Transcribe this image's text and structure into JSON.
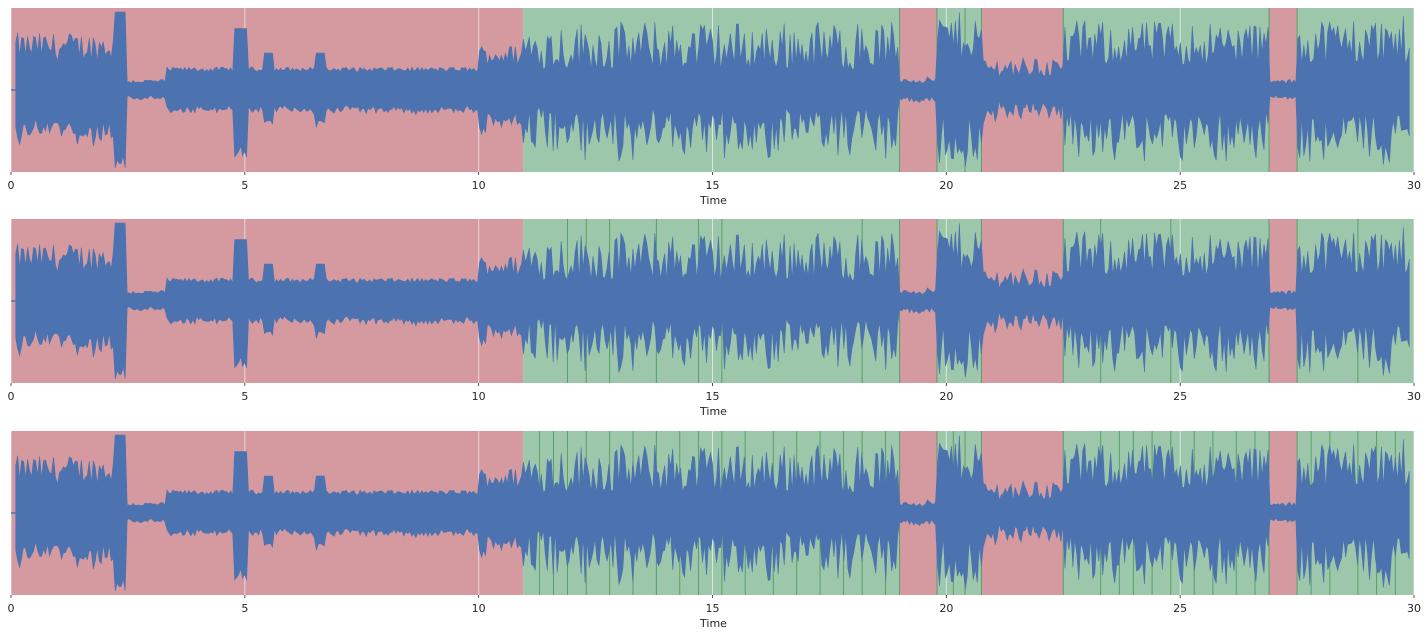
{
  "chart_data": [
    {
      "type": "area",
      "subtype": "waveform-with-segments",
      "title": "",
      "xlabel": "Time",
      "ylabel": "",
      "xlim": [
        0,
        30
      ],
      "xticks": [
        0,
        5,
        10,
        15,
        20,
        25,
        30
      ],
      "grid": true,
      "segments": [
        {
          "start": 0,
          "end": 10.95,
          "class": "red"
        },
        {
          "start": 10.95,
          "end": 19.0,
          "class": "green"
        },
        {
          "start": 19.0,
          "end": 19.8,
          "class": "red"
        },
        {
          "start": 19.8,
          "end": 20.75,
          "class": "green"
        },
        {
          "start": 20.75,
          "end": 22.5,
          "class": "red"
        },
        {
          "start": 22.5,
          "end": 26.9,
          "class": "green"
        },
        {
          "start": 26.9,
          "end": 27.5,
          "class": "red"
        },
        {
          "start": 27.5,
          "end": 30,
          "class": "green"
        }
      ],
      "boundaries": [
        19.0,
        19.8,
        20.75,
        22.5,
        26.9,
        27.5,
        20.4
      ]
    },
    {
      "type": "area",
      "subtype": "waveform-with-segments",
      "title": "",
      "xlabel": "Time",
      "ylabel": "",
      "xlim": [
        0,
        30
      ],
      "xticks": [
        0,
        5,
        10,
        15,
        20,
        25,
        30
      ],
      "grid": true,
      "segments": [
        {
          "start": 0,
          "end": 10.95,
          "class": "red"
        },
        {
          "start": 10.95,
          "end": 19.0,
          "class": "green"
        },
        {
          "start": 19.0,
          "end": 19.8,
          "class": "red"
        },
        {
          "start": 19.8,
          "end": 20.75,
          "class": "green"
        },
        {
          "start": 20.75,
          "end": 22.5,
          "class": "red"
        },
        {
          "start": 22.5,
          "end": 26.9,
          "class": "green"
        },
        {
          "start": 26.9,
          "end": 27.5,
          "class": "red"
        },
        {
          "start": 27.5,
          "end": 30,
          "class": "green"
        }
      ],
      "boundaries": [
        11.9,
        12.3,
        12.8,
        13.8,
        14.7,
        15.2,
        18.2,
        19.0,
        19.8,
        20.75,
        22.5,
        23.3,
        24.8,
        26.9,
        27.5,
        28.8
      ]
    },
    {
      "type": "area",
      "subtype": "waveform-with-segments",
      "title": "",
      "xlabel": "Time",
      "ylabel": "",
      "xlim": [
        0,
        30
      ],
      "xticks": [
        0,
        5,
        10,
        15,
        20,
        25,
        30
      ],
      "grid": true,
      "segments": [
        {
          "start": 0,
          "end": 10.95,
          "class": "red"
        },
        {
          "start": 10.95,
          "end": 19.0,
          "class": "green"
        },
        {
          "start": 19.0,
          "end": 19.8,
          "class": "red"
        },
        {
          "start": 19.8,
          "end": 20.75,
          "class": "green"
        },
        {
          "start": 20.75,
          "end": 22.5,
          "class": "red"
        },
        {
          "start": 22.5,
          "end": 26.9,
          "class": "green"
        },
        {
          "start": 26.9,
          "end": 27.5,
          "class": "red"
        },
        {
          "start": 27.5,
          "end": 30,
          "class": "green"
        }
      ],
      "boundaries": [
        11.3,
        11.6,
        11.9,
        12.3,
        12.8,
        13.3,
        13.8,
        14.3,
        14.7,
        15.2,
        15.7,
        16.3,
        16.8,
        17.3,
        17.8,
        18.2,
        18.7,
        19.0,
        19.8,
        20.15,
        20.4,
        20.75,
        22.5,
        23.3,
        23.7,
        24.0,
        24.4,
        24.8,
        25.3,
        25.7,
        26.2,
        26.6,
        26.9,
        27.5,
        27.8,
        28.2,
        28.8,
        29.2,
        29.6
      ]
    }
  ],
  "colors": {
    "red_segment": "#d59aa0",
    "green_segment": "#9dc7ab",
    "waveform": "#4c72b0",
    "boundary_line": "#5a9e6a",
    "grid": "#ffffff",
    "text": "#262626"
  }
}
